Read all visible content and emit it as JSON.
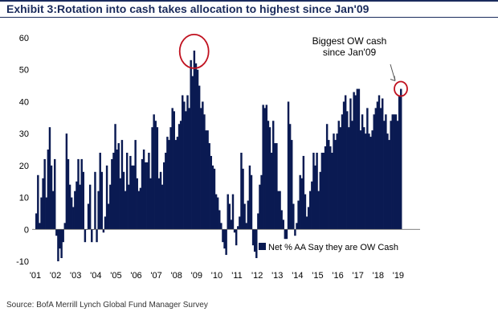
{
  "chart_data": {
    "type": "bar",
    "title": "Exhibit 3:Rotation into cash takes allocation to highest since Jan'09",
    "source": "Source:  BofA Merrill Lynch Global Fund Manager Survey",
    "ylim": [
      -10,
      60
    ],
    "yticks": [
      -10,
      0,
      10,
      20,
      30,
      40,
      50,
      60
    ],
    "xticks": [
      "'01",
      "'02",
      "'03",
      "'04",
      "'05",
      "'06",
      "'07",
      "'08",
      "'09",
      "'10",
      "'11",
      "'12",
      "'13",
      "'14",
      "'15",
      "'16",
      "'17",
      "'18",
      "'19"
    ],
    "legend": "Net % AA Say they are OW Cash",
    "annotation": [
      "Biggest OW cash",
      "since Jan'09"
    ],
    "colors": {
      "bar": "#0a1a52",
      "highlight": "#c0111f",
      "title": "#1a2b5c"
    },
    "series": [
      {
        "name": "Net % AA Say they are OW Cash",
        "start": "2001-01",
        "values": [
          5,
          17,
          2,
          10,
          16,
          22,
          10,
          25,
          32,
          20,
          12,
          22,
          -2,
          -10,
          -6,
          -9,
          -4,
          2,
          30,
          22,
          14,
          10,
          7,
          12,
          15,
          22,
          14,
          22,
          18,
          -4,
          0,
          8,
          14,
          -4,
          0,
          18,
          -4,
          12,
          24,
          18,
          -1,
          4,
          20,
          8,
          14,
          22,
          24,
          33,
          25,
          27,
          16,
          28,
          18,
          12,
          24,
          14,
          23,
          20,
          20,
          28,
          16,
          12,
          13,
          22,
          25,
          21,
          21,
          24,
          16,
          32,
          36,
          34,
          32,
          16,
          18,
          14,
          21,
          24,
          29,
          28,
          32,
          38,
          37,
          28,
          29,
          33,
          34,
          42,
          40,
          37,
          42,
          38,
          53,
          48,
          56,
          52,
          50,
          45,
          38,
          40,
          36,
          31,
          31,
          27,
          23,
          20,
          19,
          11,
          10,
          6,
          2,
          -4,
          -6,
          -8,
          11,
          8,
          3,
          11,
          -1,
          -5,
          1,
          4,
          24,
          19,
          8,
          2,
          9,
          20,
          17,
          -5,
          -7,
          -9,
          5,
          14,
          17,
          39,
          38,
          39,
          34,
          32,
          24,
          34,
          27,
          27,
          12,
          12,
          6,
          3,
          -3,
          -3,
          40,
          33,
          28,
          8,
          -2,
          2,
          9,
          17,
          16,
          23,
          11,
          4,
          7,
          12,
          15,
          24,
          20,
          24,
          12,
          18,
          24,
          24,
          26,
          33,
          28,
          26,
          24,
          30,
          28,
          30,
          34,
          32,
          36,
          40,
          42,
          37,
          32,
          41,
          34,
          43,
          42,
          44,
          44,
          31,
          36,
          32,
          30,
          38,
          30,
          29,
          31,
          36,
          38,
          40,
          42,
          38,
          41,
          34,
          36,
          30,
          28,
          34,
          36,
          36,
          36,
          34,
          42,
          44
        ]
      }
    ]
  }
}
